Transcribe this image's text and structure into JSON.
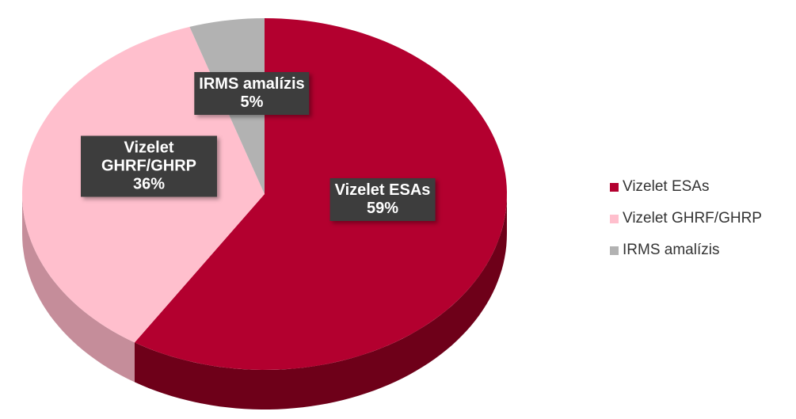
{
  "chart_data": {
    "type": "pie",
    "categories": [
      "Vizelet ESAs",
      "Vizelet GHRF/GHRP",
      "IRMS amalízis"
    ],
    "values": [
      59,
      36,
      5
    ],
    "value_labels": [
      "59%",
      "36%",
      "5%"
    ],
    "colors": [
      "#b3002f",
      "#ffbfcd",
      "#b2b2b2"
    ],
    "side_colors": [
      "#6e0019",
      "#c58d9a",
      "#7f7f7f"
    ],
    "legend": "right"
  }
}
